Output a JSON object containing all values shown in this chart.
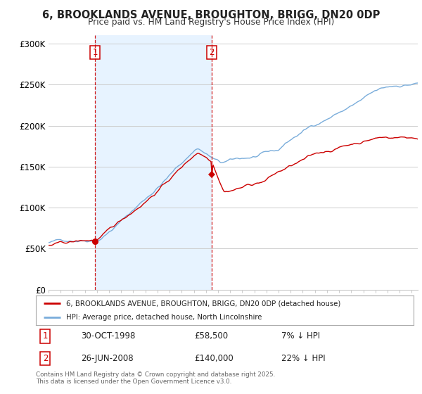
{
  "title1": "6, BROOKLANDS AVENUE, BROUGHTON, BRIGG, DN20 0DP",
  "title2": "Price paid vs. HM Land Registry's House Price Index (HPI)",
  "ylabel_ticks": [
    "£0",
    "£50K",
    "£100K",
    "£150K",
    "£200K",
    "£250K",
    "£300K"
  ],
  "ytick_vals": [
    0,
    50000,
    100000,
    150000,
    200000,
    250000,
    300000
  ],
  "ylim": [
    0,
    310000
  ],
  "xlim_start": 1995.0,
  "xlim_end": 2025.5,
  "transaction1_x": 1998.83,
  "transaction1_y": 58500,
  "transaction1_label": "1",
  "transaction1_date": "30-OCT-1998",
  "transaction1_price": "£58,500",
  "transaction1_hpi": "7% ↓ HPI",
  "transaction2_x": 2008.48,
  "transaction2_y": 140000,
  "transaction2_label": "2",
  "transaction2_date": "26-JUN-2008",
  "transaction2_price": "£140,000",
  "transaction2_hpi": "22% ↓ HPI",
  "legend_label_red": "6, BROOKLANDS AVENUE, BROUGHTON, BRIGG, DN20 0DP (detached house)",
  "legend_label_blue": "HPI: Average price, detached house, North Lincolnshire",
  "footer": "Contains HM Land Registry data © Crown copyright and database right 2025.\nThis data is licensed under the Open Government Licence v3.0.",
  "red_color": "#cc0000",
  "blue_color": "#7aaddb",
  "shade_color": "#ddeeff",
  "dashed_color": "#cc0000",
  "background_color": "#ffffff",
  "grid_color": "#cccccc"
}
